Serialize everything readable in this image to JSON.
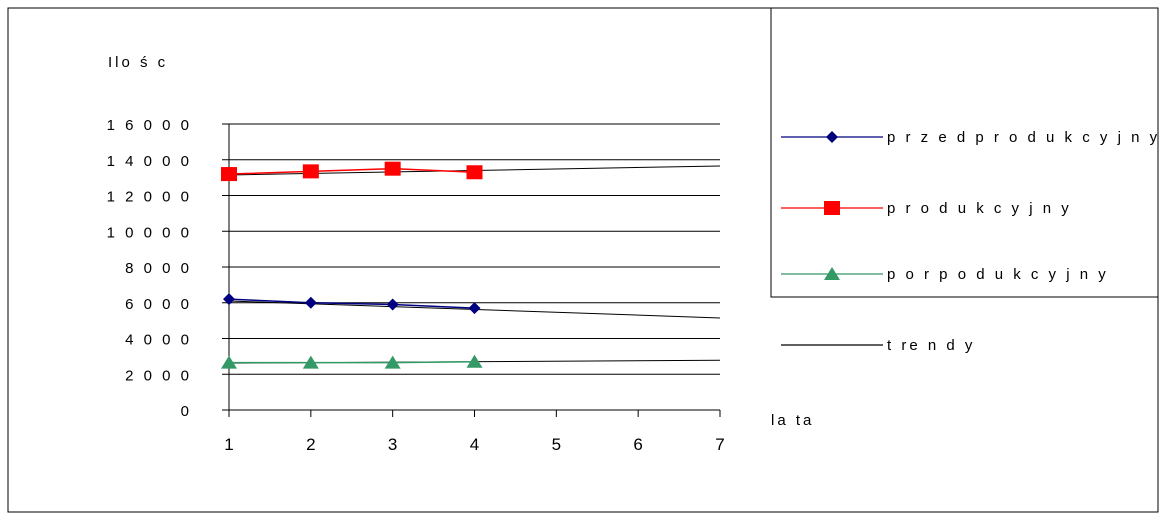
{
  "chart_data": {
    "type": "line",
    "ylabel": "Ilośc",
    "xlabel": "lata",
    "x_ticks": [
      "1",
      "2",
      "3",
      "4",
      "5",
      "6",
      "7"
    ],
    "y_ticks": [
      "0",
      "2000",
      "4000",
      "6000",
      "8000",
      "10000",
      "12000",
      "14000",
      "16000"
    ],
    "y_tick_labels": [
      "0",
      "2 0 0 0",
      "4 0 0 0",
      "6 0 0 0",
      "8 0 0 0",
      "1 0 0 0 0",
      "1 2 0 0 0",
      "1 4 0 0 0",
      "1 6 0 0 0"
    ],
    "xlim": [
      1,
      7
    ],
    "ylim": [
      0,
      16000
    ],
    "grid": true,
    "legend_position": "right",
    "series": [
      {
        "name": "przedprodukcyjny",
        "color": "#000080",
        "marker": "diamond",
        "x": [
          1,
          2,
          3,
          4
        ],
        "values": [
          6200,
          6000,
          5900,
          5700
        ]
      },
      {
        "name": "produkcyjny",
        "color": "#ff0000",
        "marker": "square",
        "x": [
          1,
          2,
          3,
          4
        ],
        "values": [
          13200,
          13350,
          13500,
          13300
        ]
      },
      {
        "name": "porpodukcyjny",
        "color": "#339966",
        "marker": "triangle",
        "x": [
          1,
          2,
          3,
          4
        ],
        "values": [
          2650,
          2650,
          2650,
          2700
        ]
      }
    ],
    "trends": {
      "name": "trendy",
      "color": "#000000",
      "lines": [
        {
          "x": [
            1,
            7
          ],
          "values": [
            6100,
            5150
          ]
        },
        {
          "x": [
            1,
            7
          ],
          "values": [
            13150,
            13650
          ]
        },
        {
          "x": [
            1,
            7
          ],
          "values": [
            2620,
            2780
          ]
        }
      ]
    }
  },
  "legend": {
    "items": [
      {
        "label": "p r z e d p r o d u k c y j n y",
        "color": "#000080",
        "marker": "diamond"
      },
      {
        "label": "p r o d u k c y j n y",
        "color": "#ff0000",
        "marker": "square"
      },
      {
        "label": "p o r p o d u k c y j n y",
        "color": "#339966",
        "marker": "triangle"
      },
      {
        "label": "t re n d y",
        "color": "#000000",
        "marker": "none"
      }
    ]
  },
  "labels": {
    "ylabel": "Ilo ś c",
    "xlabel": "la ta"
  }
}
